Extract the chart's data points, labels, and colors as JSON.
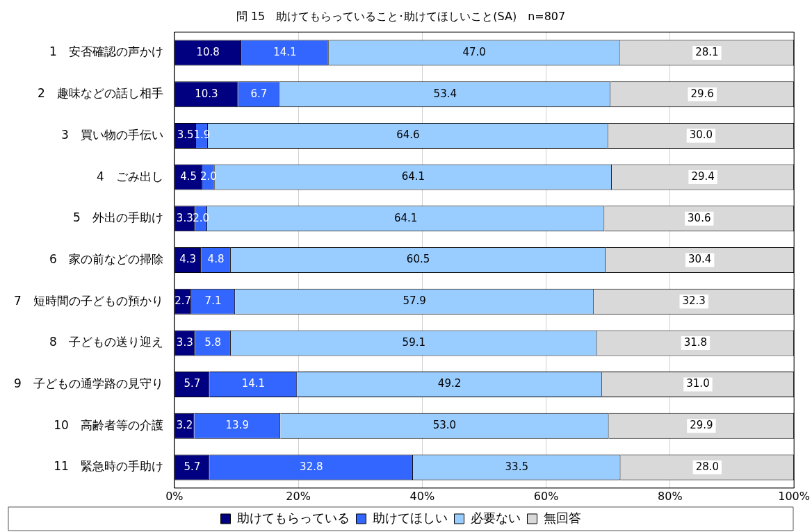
{
  "chart_data": {
    "type": "bar",
    "orientation": "horizontal",
    "stacked": true,
    "title": "問 15　助けてもらっていること･助けてほしいこと(SA)　n=807",
    "categories": [
      "1　安否確認の声かけ",
      "2　趣味などの話し相手",
      "3　買い物の手伝い",
      "4　ごみ出し",
      "5　外出の手助け",
      "6　家の前などの掃除",
      "7　短時間の子どもの預かり",
      "8　子どもの送り迎え",
      "9　子どもの通学路の見守り",
      "10　高齢者等の介護",
      "11　緊急時の手助け"
    ],
    "series": [
      {
        "name": "助けてもらっている",
        "color": "#000080",
        "values": [
          10.8,
          10.3,
          3.5,
          4.5,
          3.3,
          4.3,
          2.7,
          3.3,
          5.7,
          3.2,
          5.7
        ],
        "value_labels": [
          "10.8",
          "10.3",
          "3.5",
          "4.5",
          "3.3",
          "4.3",
          "2.7",
          "3.3",
          "5.7",
          "3.2",
          "5.7"
        ]
      },
      {
        "name": "助けてほしい",
        "color": "#3366ff",
        "values": [
          14.1,
          6.7,
          1.9,
          2.0,
          2.0,
          4.8,
          7.1,
          5.8,
          14.1,
          13.9,
          32.8
        ],
        "value_labels": [
          "14.1",
          "6.7",
          "1.9",
          "2.0",
          "2.0",
          "4.8",
          "7.1",
          "5.8",
          "14.1",
          "13.9",
          "32.8"
        ]
      },
      {
        "name": "必要ない",
        "color": "#99ccff",
        "values": [
          47.0,
          53.4,
          64.6,
          64.1,
          64.1,
          60.5,
          57.9,
          59.1,
          49.2,
          53.0,
          33.5
        ],
        "value_labels": [
          "47.0",
          "53.4",
          "64.6",
          "64.1",
          "64.1",
          "60.5",
          "57.9",
          "59.1",
          "49.2",
          "53.0",
          "33.5"
        ]
      },
      {
        "name": "無回答",
        "color": "#d9d9d9",
        "values": [
          28.1,
          29.6,
          30.0,
          29.4,
          30.6,
          30.4,
          32.3,
          31.8,
          31.0,
          29.9,
          28.0
        ],
        "value_labels": [
          "28.1",
          "29.6",
          "30.0",
          "29.4",
          "30.6",
          "30.4",
          "32.3",
          "31.8",
          "31.0",
          "29.9",
          "28.0"
        ]
      }
    ],
    "xlim": [
      0,
      100
    ],
    "xticks": [
      {
        "value": 0,
        "label": "0%"
      },
      {
        "value": 20,
        "label": "20%"
      },
      {
        "value": 40,
        "label": "40%"
      },
      {
        "value": 60,
        "label": "60%"
      },
      {
        "value": 80,
        "label": "80%"
      },
      {
        "value": 100,
        "label": "100%"
      }
    ],
    "grid": "x",
    "legend": "bottom"
  }
}
